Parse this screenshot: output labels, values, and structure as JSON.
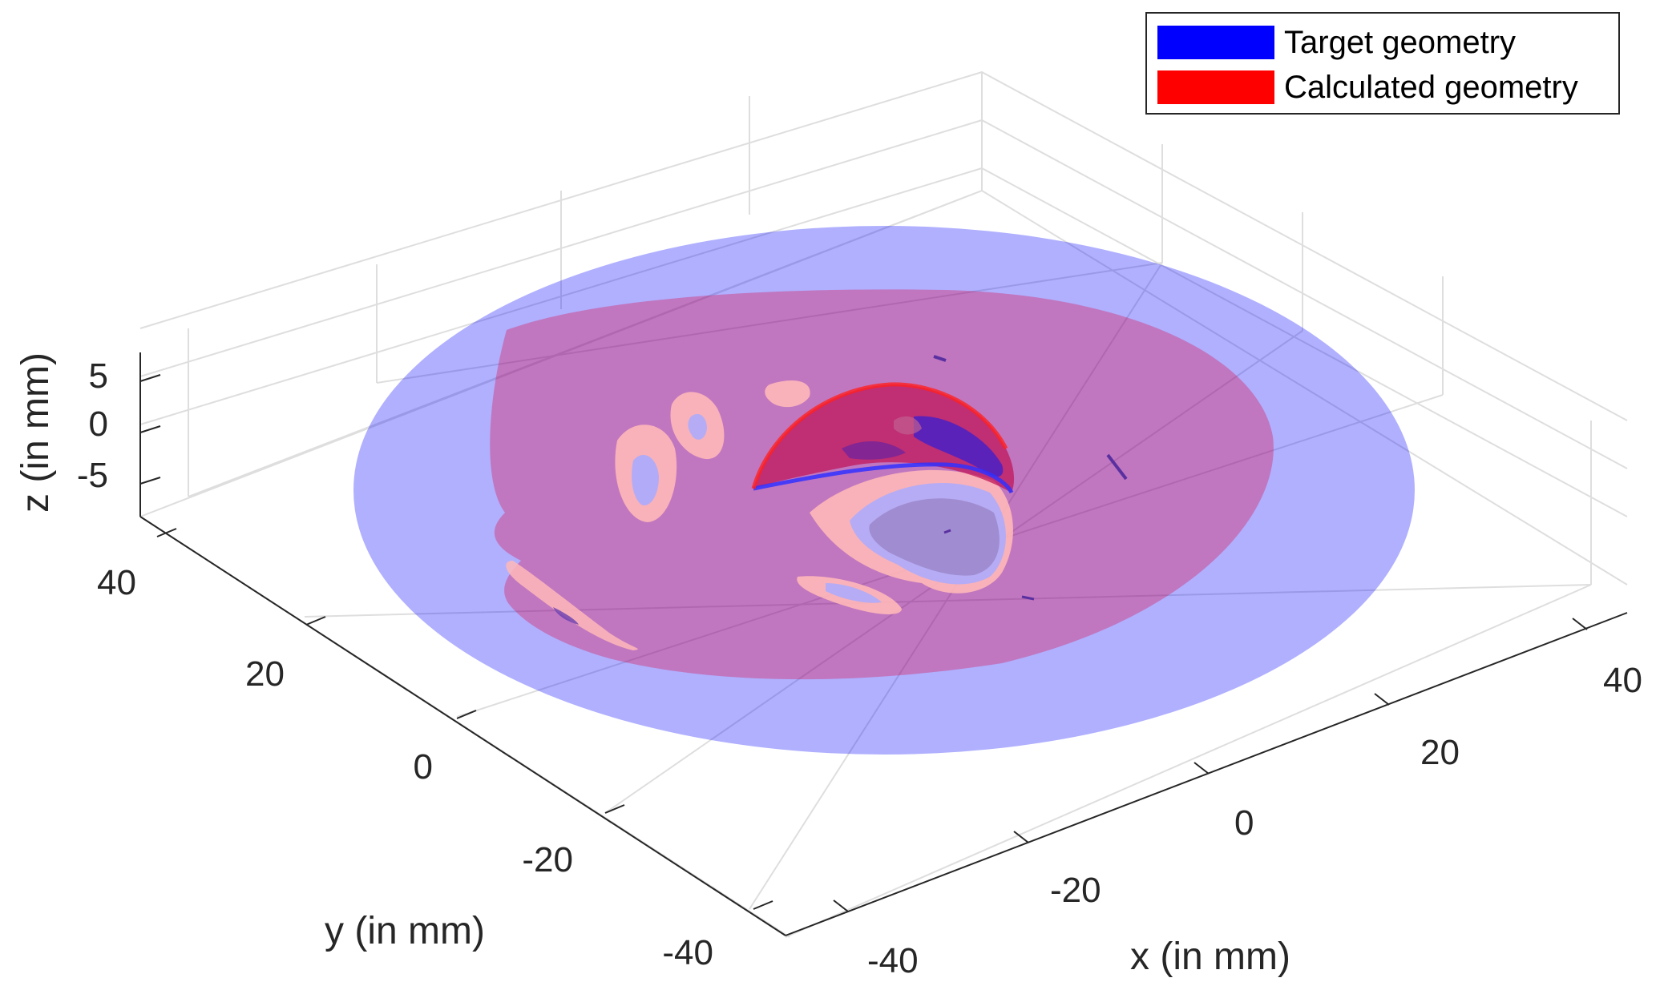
{
  "chart_data": {
    "type": "surface3d",
    "xlabel": "x (in mm)",
    "ylabel": "y (in mm)",
    "zlabel": "z (in mm)",
    "xlim": [
      -45,
      45
    ],
    "ylim": [
      -45,
      45
    ],
    "zlim": [
      -8,
      8
    ],
    "x_ticks": [
      "-40",
      "-20",
      "0",
      "20",
      "40"
    ],
    "y_ticks": [
      "-40",
      "-20",
      "0",
      "20",
      "40"
    ],
    "z_ticks": [
      "-5",
      "0",
      "5"
    ],
    "grid": true,
    "legend_position": "top-right",
    "series": [
      {
        "name": "Target geometry",
        "color": "#0000ff",
        "opacity": 0.32
      },
      {
        "name": "Calculated geometry",
        "color": "#ff0000",
        "opacity": 0.38
      }
    ]
  }
}
